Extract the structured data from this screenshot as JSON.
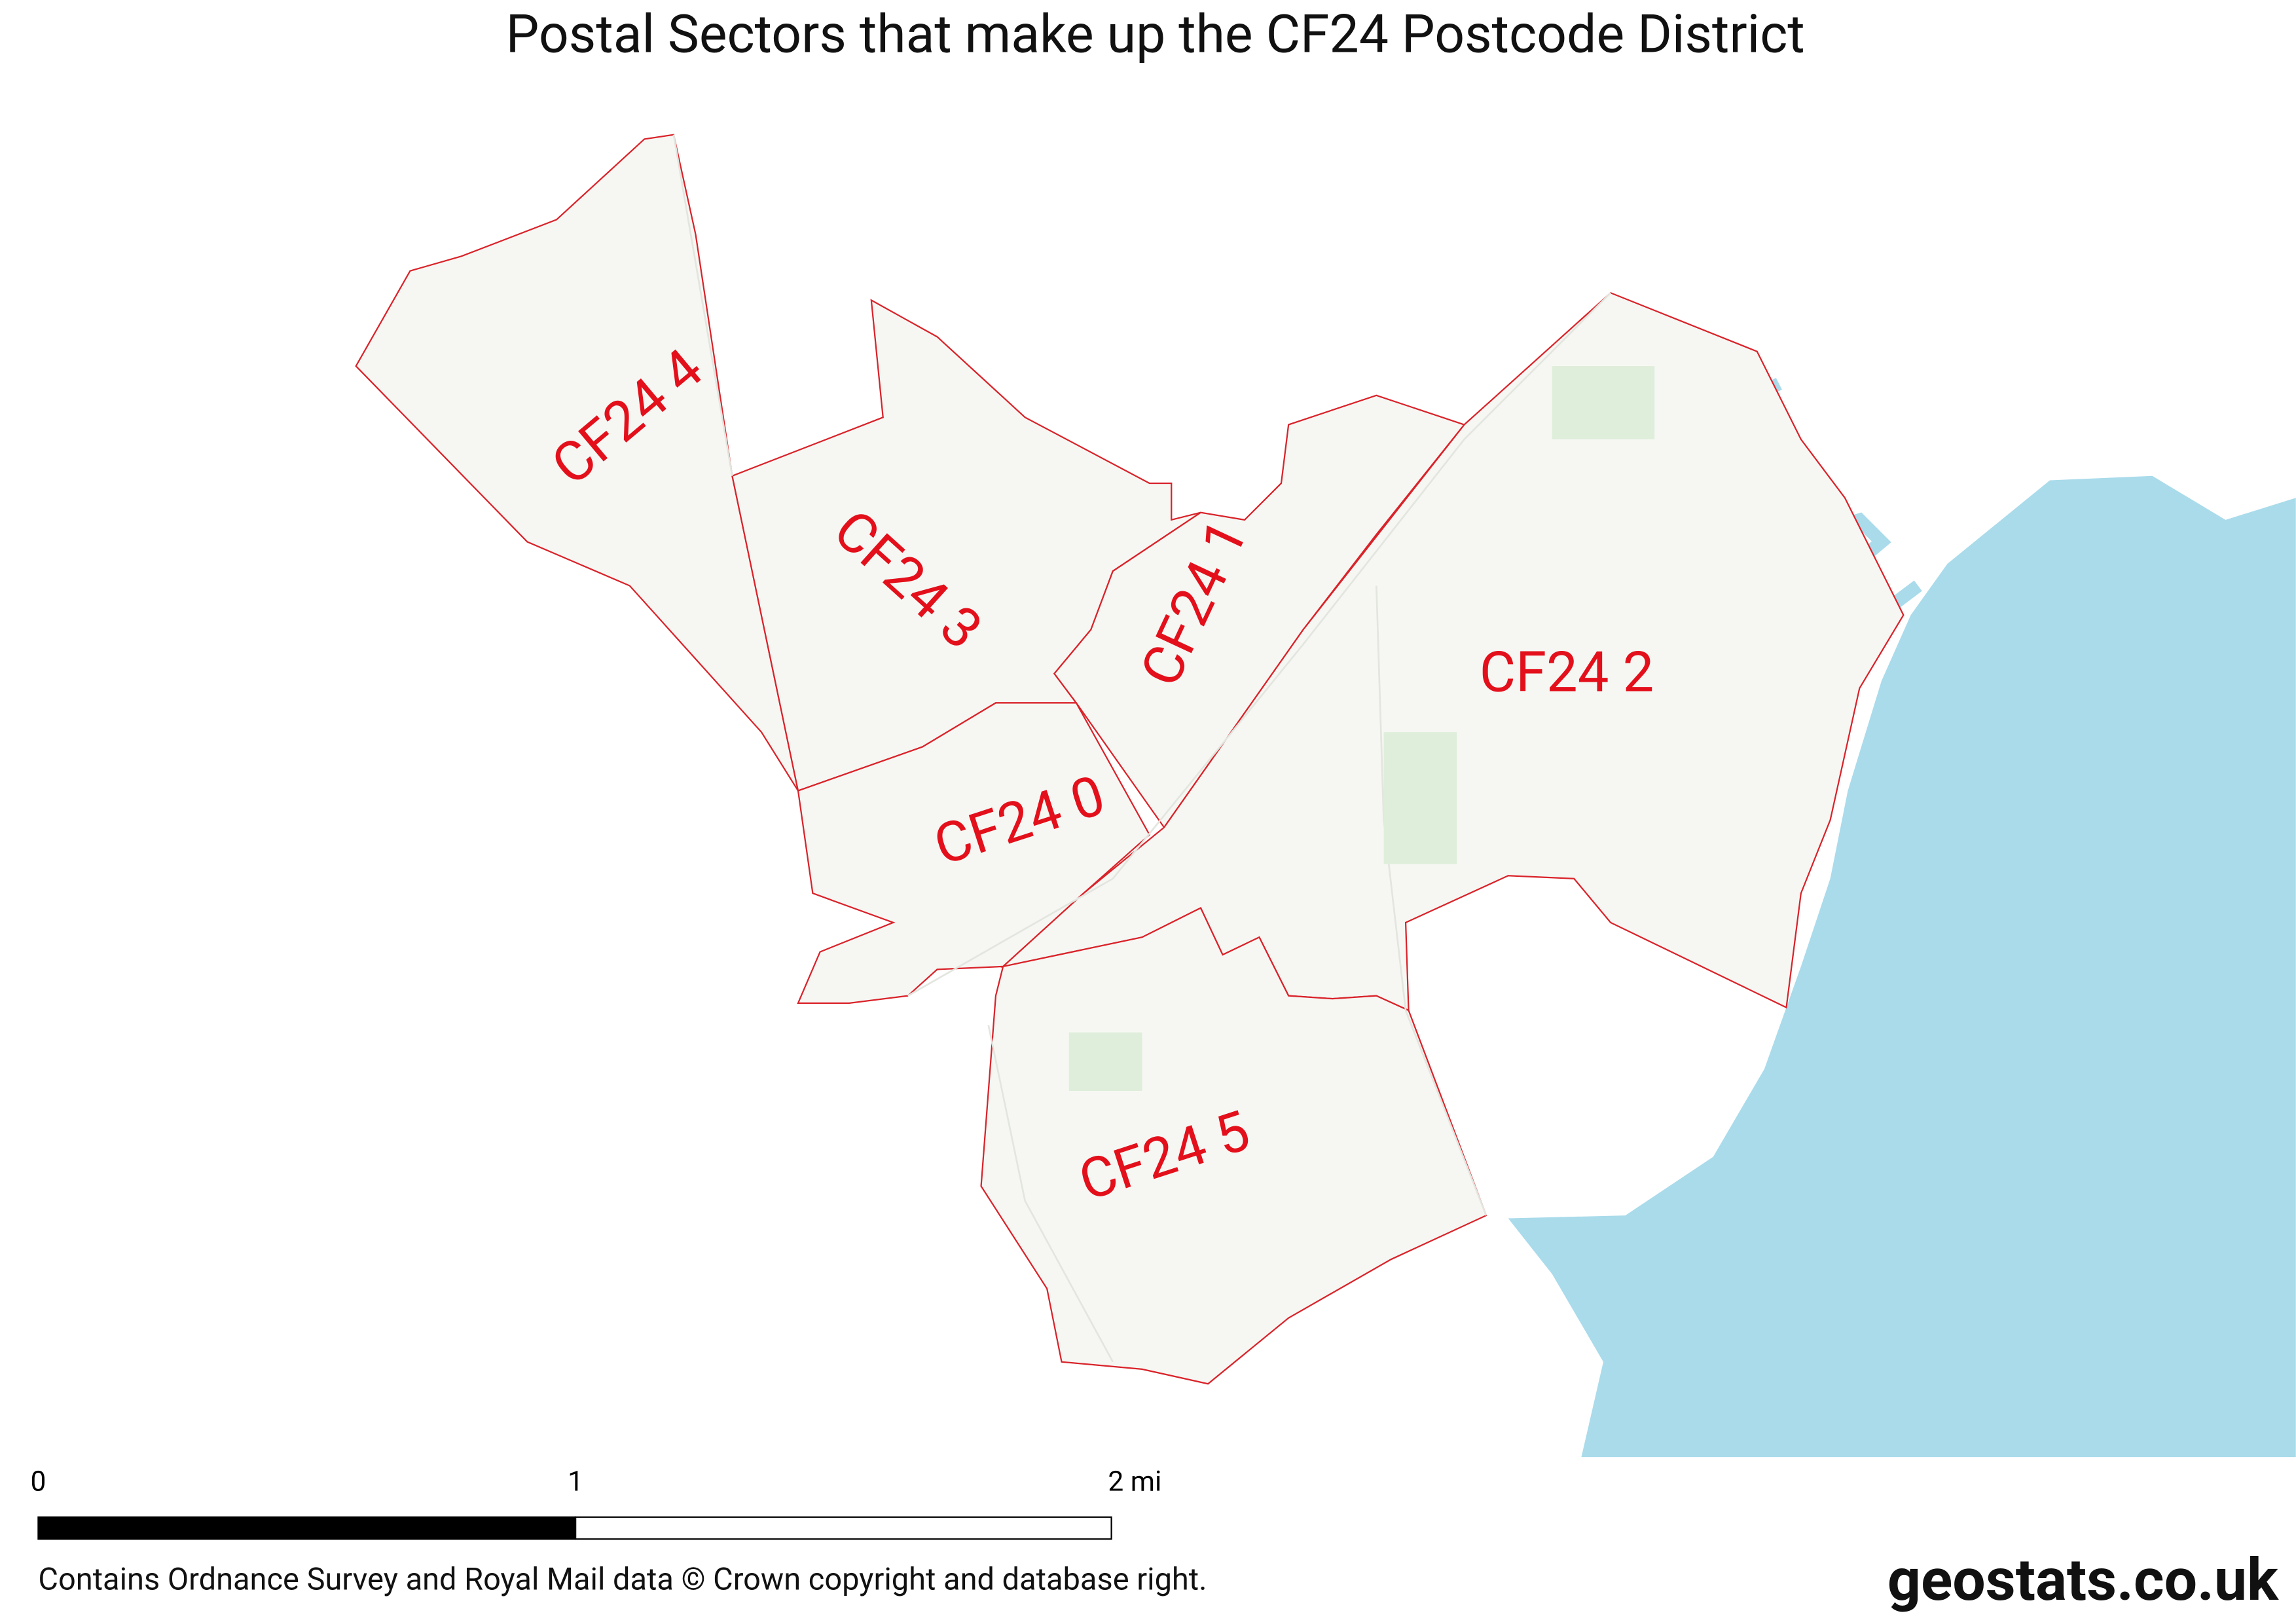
{
  "title": "Postal Sectors that make up the CF24 Postcode District",
  "sectors": [
    {
      "label": "CF24 4"
    },
    {
      "label": "CF24 3"
    },
    {
      "label": "CF24 1"
    },
    {
      "label": "CF24 0"
    },
    {
      "label": "CF24 2"
    },
    {
      "label": "CF24 5"
    }
  ],
  "scale_bar": {
    "labels": [
      "0",
      "1",
      "2 mi"
    ]
  },
  "attribution": "Contains Ordnance Survey and Royal Mail data © Crown copyright and database right.",
  "brand": "geostats.co.uk"
}
